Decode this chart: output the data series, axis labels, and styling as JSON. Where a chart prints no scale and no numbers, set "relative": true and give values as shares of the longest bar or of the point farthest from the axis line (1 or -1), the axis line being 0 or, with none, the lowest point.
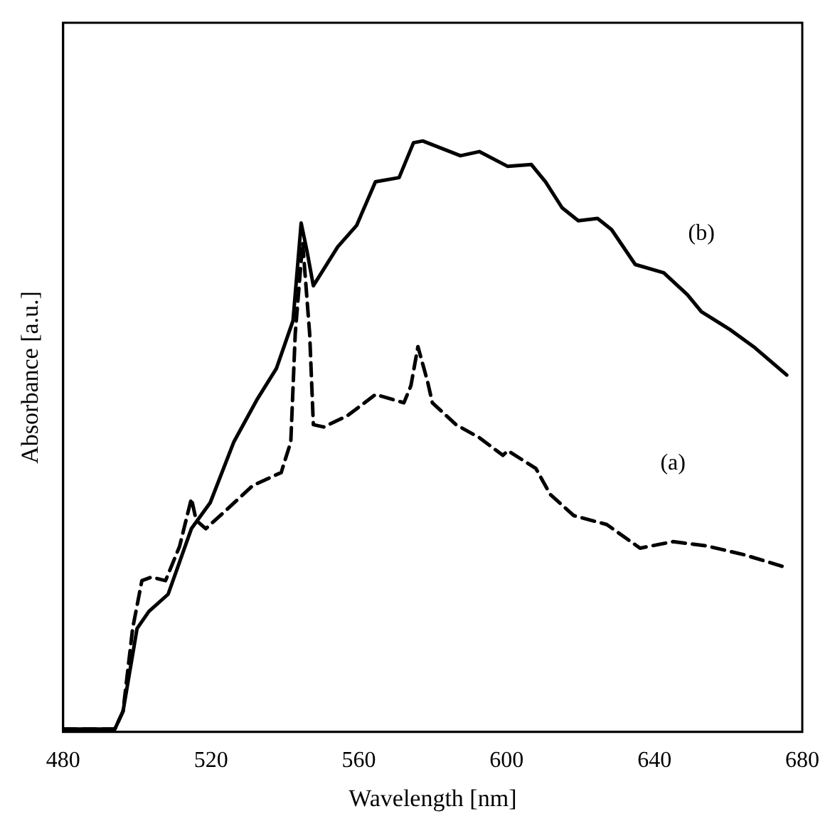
{
  "chart_data": {
    "type": "line",
    "xlabel": "Wavelength [nm]",
    "ylabel": "Absorbance [a.u.]",
    "relative": true,
    "xlim": [
      480,
      680
    ],
    "xticks": [
      480,
      520,
      560,
      600,
      640,
      680
    ],
    "grid": false,
    "legend": false,
    "marker": "none",
    "series": [
      {
        "name": "(a)",
        "color": "#000000",
        "line_style": "dashed",
        "x": [
          480,
          494,
          496.2,
          498.8,
          501.3,
          503.9,
          507.7,
          511.5,
          514.7,
          516.0,
          518.6,
          523.7,
          531.3,
          539.0,
          541.6,
          542.8,
          544.8,
          546.7,
          547.7,
          550.5,
          556.9,
          564.5,
          572.2,
          574.1,
          576.0,
          578.6,
          579.9,
          586.3,
          592.6,
          599.0,
          600.3,
          607.9,
          611.8,
          618.2,
          627.1,
          636.1,
          645.0,
          654.0,
          664.2,
          675.8
        ],
        "values": [
          0.005,
          0.005,
          0.035,
          0.175,
          0.256,
          0.262,
          0.256,
          0.314,
          0.395,
          0.358,
          0.344,
          0.373,
          0.417,
          0.439,
          0.491,
          0.674,
          0.828,
          0.674,
          0.52,
          0.516,
          0.535,
          0.571,
          0.557,
          0.586,
          0.652,
          0.593,
          0.557,
          0.52,
          0.498,
          0.468,
          0.476,
          0.446,
          0.402,
          0.366,
          0.351,
          0.311,
          0.322,
          0.315,
          0.3,
          0.278
        ]
      },
      {
        "name": "(b)",
        "color": "#000000",
        "line_style": "solid",
        "x": [
          480,
          494,
          496.2,
          500.0,
          503.2,
          508.4,
          514.7,
          519.8,
          526.2,
          532.6,
          537.7,
          542.2,
          544.4,
          546.0,
          547.7,
          554.3,
          559.4,
          564.5,
          570.9,
          574.8,
          577.3,
          587.5,
          592.6,
          600.3,
          606.7,
          610.5,
          615.0,
          619.4,
          624.6,
          628.4,
          634.8,
          642.5,
          648.9,
          652.7,
          660.4,
          666.8,
          675.8
        ],
        "values": [
          0.005,
          0.005,
          0.035,
          0.175,
          0.204,
          0.233,
          0.344,
          0.388,
          0.491,
          0.564,
          0.615,
          0.696,
          0.861,
          0.813,
          0.755,
          0.821,
          0.857,
          0.931,
          0.938,
          0.997,
          1.0,
          0.975,
          0.982,
          0.957,
          0.96,
          0.931,
          0.887,
          0.865,
          0.869,
          0.85,
          0.791,
          0.777,
          0.74,
          0.711,
          0.681,
          0.652,
          0.604
        ]
      }
    ]
  }
}
